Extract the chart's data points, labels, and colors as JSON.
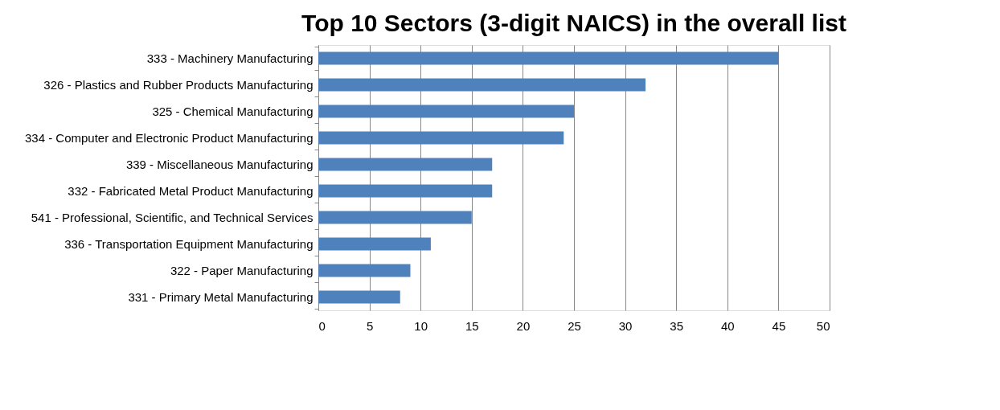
{
  "chart_data": {
    "type": "bar",
    "orientation": "horizontal",
    "title": "Top 10 Sectors (3-digit NAICS) in the overall list",
    "categories": [
      "333 - Machinery Manufacturing",
      "326 - Plastics and Rubber Products Manufacturing",
      "325 - Chemical Manufacturing",
      "334 - Computer and Electronic Product Manufacturing",
      "339 - Miscellaneous Manufacturing",
      "332 - Fabricated Metal Product Manufacturing",
      "541 - Professional, Scientific, and Technical Services",
      "336 - Transportation Equipment Manufacturing",
      "322 - Paper Manufacturing",
      "331 - Primary Metal Manufacturing"
    ],
    "values": [
      45,
      32,
      25,
      24,
      17,
      17,
      15,
      11,
      9,
      8
    ],
    "color": "#4f81bd",
    "xlim": [
      0,
      50
    ],
    "xticks": [
      0,
      5,
      10,
      15,
      20,
      25,
      30,
      35,
      40,
      45,
      50
    ],
    "grid": "x"
  }
}
